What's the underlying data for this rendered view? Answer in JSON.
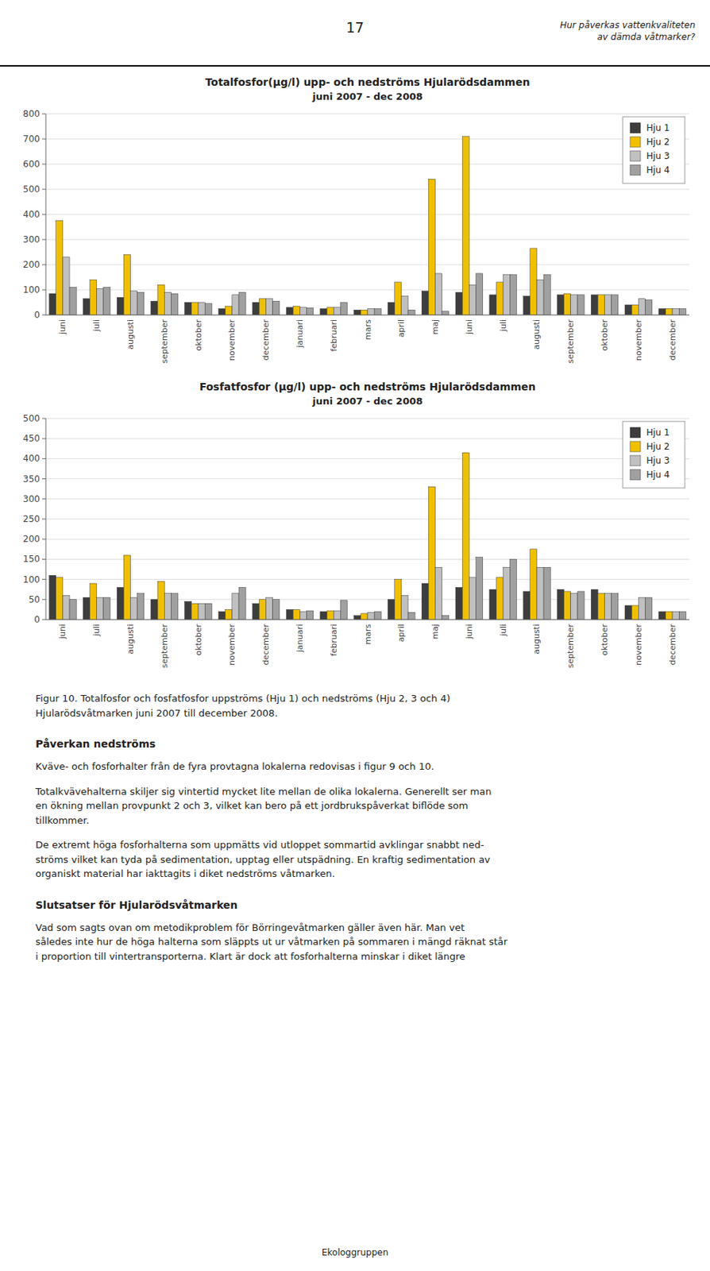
{
  "header_text": "17",
  "header_right": "Hur påverkas vattenkvaliteten\nav dämda våtmarker?",
  "chart_data": [
    {
      "type": "bar",
      "title": "Totalfosfor(μg/l) upp- och nedströms Hjularödsdammen",
      "subtitle": "juni 2007 - dec 2008",
      "categories": [
        "juni",
        "juli",
        "augusti",
        "september",
        "oktober",
        "november",
        "december",
        "januari",
        "februari",
        "mars",
        "april",
        "maj",
        "juni",
        "juli",
        "augusti",
        "september",
        "oktober",
        "november",
        "december"
      ],
      "series": [
        {
          "name": "Hju 1",
          "color": "#3d3d3d",
          "values": [
            85,
            65,
            70,
            55,
            50,
            25,
            50,
            30,
            25,
            20,
            50,
            95,
            90,
            80,
            75,
            80,
            80,
            40,
            25
          ]
        },
        {
          "name": "Hju 2",
          "color": "#f0c000",
          "values": [
            375,
            140,
            240,
            120,
            50,
            35,
            65,
            35,
            30,
            20,
            130,
            540,
            710,
            130,
            265,
            85,
            80,
            40,
            25
          ]
        },
        {
          "name": "Hju 3",
          "color": "#c0c0c0",
          "values": [
            230,
            105,
            95,
            90,
            50,
            80,
            65,
            30,
            30,
            25,
            75,
            165,
            120,
            160,
            140,
            80,
            80,
            65,
            25
          ]
        },
        {
          "name": "Hju 4",
          "color": "#a0a0a0",
          "values": [
            110,
            110,
            90,
            85,
            45,
            90,
            55,
            28,
            50,
            25,
            20,
            15,
            165,
            160,
            160,
            80,
            80,
            60,
            25
          ]
        }
      ],
      "ylim": [
        0,
        800
      ],
      "yticks": [
        0,
        100,
        200,
        300,
        400,
        500,
        600,
        700,
        800
      ],
      "grid": true,
      "legend": "upper right"
    },
    {
      "type": "bar",
      "title": "Fosfatfosfor (μg/l) upp- och nedströms Hjularödsdammen",
      "subtitle": "juni 2007 - dec 2008",
      "categories": [
        "juni",
        "juli",
        "augusti",
        "september",
        "oktober",
        "november",
        "december",
        "januari",
        "februari",
        "mars",
        "april",
        "maj",
        "juni",
        "juli",
        "augusti",
        "september",
        "oktober",
        "november",
        "december"
      ],
      "series": [
        {
          "name": "Hju 1",
          "color": "#3d3d3d",
          "values": [
            110,
            55,
            80,
            50,
            45,
            20,
            40,
            25,
            20,
            10,
            50,
            90,
            80,
            75,
            70,
            75,
            75,
            35,
            20
          ]
        },
        {
          "name": "Hju 2",
          "color": "#f0c000",
          "values": [
            105,
            90,
            160,
            95,
            40,
            25,
            50,
            25,
            22,
            15,
            100,
            330,
            415,
            105,
            175,
            70,
            65,
            35,
            20
          ]
        },
        {
          "name": "Hju 3",
          "color": "#c0c0c0",
          "values": [
            60,
            55,
            55,
            65,
            40,
            65,
            55,
            20,
            22,
            18,
            60,
            130,
            105,
            130,
            130,
            65,
            65,
            55,
            20
          ]
        },
        {
          "name": "Hju 4",
          "color": "#a0a0a0",
          "values": [
            50,
            55,
            65,
            65,
            40,
            80,
            50,
            22,
            48,
            20,
            18,
            10,
            155,
            150,
            130,
            70,
            65,
            55,
            20
          ]
        }
      ],
      "ylim": [
        0,
        500
      ],
      "yticks": [
        0,
        50,
        100,
        150,
        200,
        250,
        300,
        350,
        400,
        450,
        500
      ],
      "grid": true,
      "legend": "upper right"
    }
  ],
  "figure_caption": "Figur 10.   Totalfosfor och fosfatfosfor uppströms (Hju 1) och nedströms (Hju 2, 3 och 4)\nHjularödsvåtmarken juni 2007 till december 2008.",
  "sections": [
    {
      "heading": "Påverkan nedströms",
      "paragraphs": [
        "Kväve- och fosforhalter från de fyra provtagna lokalerna redovisas i figur 9 och 10.",
        "Totalkvävehalterna skiljer sig vintertid mycket lite mellan de olika lokalerna. Generellt ser man\nen ökning mellan provpunkt 2 och 3, vilket kan bero på ett jordbrukspåverkat biflöde som\ntillkommer.",
        "De extremt höga fosforhalterna som uppmätts vid utloppet sommartid avklingar snabbt ned-\nströms vilket kan tyda på sedimentation, upptag eller utspädning. En kraftig sedimentation av\norganiskt material har iakttagits i diket nedströms våtmarken."
      ]
    },
    {
      "heading": "Slutsatser för Hjularödsvåtmarken",
      "paragraphs": [
        "Vad som sagts ovan om metodikproblem för Börringevåtmarken gäller även här. Man vet\nsåledes inte hur de höga halterna som släppts ut ur våtmarken på sommaren i mängd räknat står\ni proportion till vintertransporterna. Klart är dock att fosforhalterna minskar i diket längre"
      ]
    }
  ],
  "footer_text": "Ekologgruppen"
}
